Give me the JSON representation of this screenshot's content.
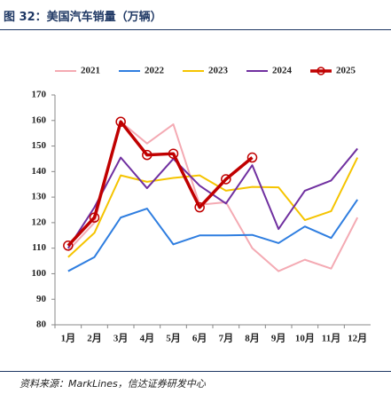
{
  "header": {
    "title": "图 32：美国汽车销量（万辆）"
  },
  "source": "资料来源：MarkLines，信达证券研发中心",
  "chart_data": {
    "type": "line",
    "categories": [
      "1月",
      "2月",
      "3月",
      "4月",
      "5月",
      "6月",
      "7月",
      "8月",
      "9月",
      "10月",
      "11月",
      "12月"
    ],
    "series": [
      {
        "name": "2021",
        "color": "#f4aab3",
        "values": [
          109,
          120,
          159.5,
          151,
          158.5,
          127,
          128,
          110,
          101,
          105.5,
          102,
          122
        ]
      },
      {
        "name": "2022",
        "color": "#2f7ee0",
        "values": [
          101,
          106.5,
          122,
          125.5,
          111.5,
          115,
          115,
          115.2,
          112,
          118.5,
          114,
          129
        ]
      },
      {
        "name": "2023",
        "color": "#f5c400",
        "values": [
          106.5,
          116,
          138.5,
          136,
          137.5,
          138.5,
          132.5,
          134,
          133.8,
          121,
          124.5,
          145.5
        ]
      },
      {
        "name": "2024",
        "color": "#7030a0",
        "values": [
          110,
          126,
          145.5,
          133.5,
          145,
          134.5,
          127.5,
          142.5,
          117.5,
          132.5,
          136.5,
          149
        ]
      },
      {
        "name": "2025",
        "color": "#c00000",
        "marker": "circle",
        "values": [
          111,
          122,
          159.5,
          146.5,
          147,
          126,
          137,
          145.5,
          null,
          null,
          null,
          null
        ]
      }
    ],
    "ylim": [
      80,
      170
    ],
    "yticks": [
      80,
      90,
      100,
      110,
      120,
      130,
      140,
      150,
      160,
      170
    ],
    "grid": false,
    "legend": "top"
  }
}
